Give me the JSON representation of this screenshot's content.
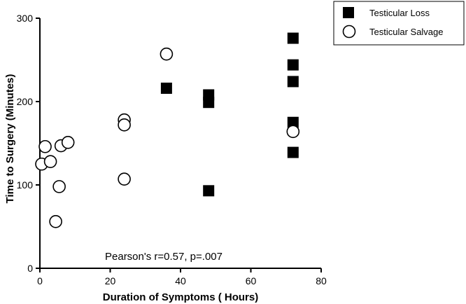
{
  "chart_data": {
    "type": "scatter",
    "title": "",
    "xlabel": "Duration of  Symptoms ( Hours)",
    "ylabel": "Time to Surgery (Minutes)",
    "xlim": [
      0,
      80
    ],
    "ylim": [
      0,
      300
    ],
    "x_ticks": [
      "0",
      "20",
      "40",
      "60",
      "80"
    ],
    "y_ticks": [
      "0",
      "100",
      "200",
      "300"
    ],
    "grid": false,
    "legend_position": "top-right",
    "annotation": "Pearson's r=0.57, p=.007",
    "series": [
      {
        "name": "Testicular Loss",
        "marker": "filled-square",
        "color": "#000000",
        "points": [
          {
            "x": 36,
            "y": 216
          },
          {
            "x": 48,
            "y": 208
          },
          {
            "x": 48,
            "y": 199
          },
          {
            "x": 48,
            "y": 93
          },
          {
            "x": 72,
            "y": 276
          },
          {
            "x": 72,
            "y": 244
          },
          {
            "x": 72,
            "y": 224
          },
          {
            "x": 72,
            "y": 175
          },
          {
            "x": 72,
            "y": 139
          }
        ]
      },
      {
        "name": "Testicular Salvage",
        "marker": "open-circle",
        "color": "#000000",
        "points": [
          {
            "x": 0.5,
            "y": 125
          },
          {
            "x": 1.5,
            "y": 146
          },
          {
            "x": 3,
            "y": 128
          },
          {
            "x": 4.5,
            "y": 56
          },
          {
            "x": 5.5,
            "y": 98
          },
          {
            "x": 6,
            "y": 147
          },
          {
            "x": 8,
            "y": 151
          },
          {
            "x": 24,
            "y": 178
          },
          {
            "x": 24,
            "y": 172
          },
          {
            "x": 24,
            "y": 107
          },
          {
            "x": 36,
            "y": 257
          },
          {
            "x": 72,
            "y": 164
          }
        ]
      }
    ]
  }
}
